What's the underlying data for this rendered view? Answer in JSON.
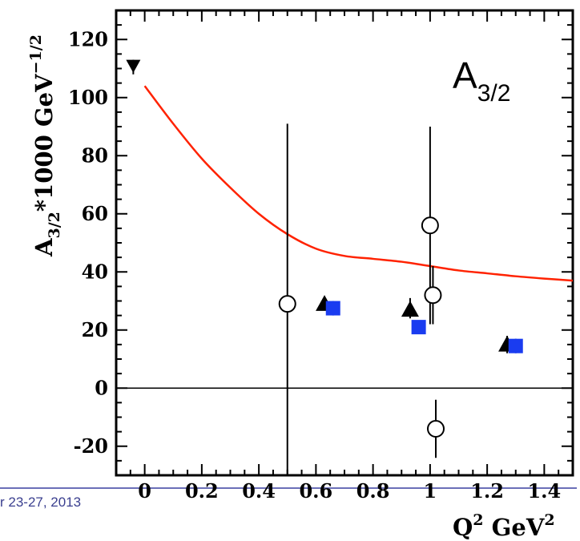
{
  "chart_data": {
    "type": "scatter",
    "title": "",
    "inset_label": {
      "main": "A",
      "sub": "3/2"
    },
    "ylabel": {
      "pre": "A",
      "sub": "3/2",
      "post": "*1000 GeV",
      "sup": "−1/2"
    },
    "xlabel": {
      "q": "Q",
      "sup1": "2",
      "gev": " GeV",
      "sup2": "2"
    },
    "xlim": [
      -0.1,
      1.5
    ],
    "ylim": [
      -30,
      130
    ],
    "x_ticks": [
      0,
      0.2,
      0.4,
      0.6,
      0.8,
      1,
      1.2,
      1.4
    ],
    "x_tick_labels": [
      "0",
      "0.2",
      "0.4",
      "0.6",
      "0.8",
      "1",
      "1.2",
      "1.4"
    ],
    "y_ticks": [
      -20,
      0,
      20,
      40,
      60,
      80,
      100,
      120
    ],
    "y_tick_labels": [
      "-20",
      "0",
      "20",
      "40",
      "60",
      "80",
      "100",
      "120"
    ],
    "reference_line_y": 0,
    "curve": {
      "color": "#ff2200",
      "x": [
        0.0,
        0.1,
        0.2,
        0.3,
        0.4,
        0.5,
        0.6,
        0.7,
        0.8,
        0.9,
        1.0,
        1.1,
        1.2,
        1.3,
        1.4,
        1.5
      ],
      "y": [
        104,
        91,
        79,
        69,
        60,
        53,
        48,
        45.5,
        44.5,
        43.5,
        42,
        40.5,
        39.5,
        38.5,
        37.7,
        37
      ]
    },
    "series": [
      {
        "marker": "circle-open",
        "color": "#000000",
        "points": [
          {
            "x": 0.5,
            "y": 29,
            "ylo": -35,
            "yhi": 91
          },
          {
            "x": 1.0,
            "y": 56,
            "ylo": 22,
            "yhi": 90
          },
          {
            "x": 1.01,
            "y": 32,
            "ylo": 22,
            "yhi": 42
          },
          {
            "x": 1.02,
            "y": -14,
            "ylo": -24,
            "yhi": -4
          }
        ]
      },
      {
        "marker": "triangle-up",
        "color": "#000000",
        "points": [
          {
            "x": 0.63,
            "y": 29,
            "ylo": 27,
            "yhi": 31
          },
          {
            "x": 0.93,
            "y": 27,
            "ylo": 24,
            "yhi": 31
          },
          {
            "x": 1.27,
            "y": 15,
            "ylo": 12,
            "yhi": 18
          }
        ]
      },
      {
        "marker": "square",
        "color": "#1a3cf0",
        "points": [
          {
            "x": 0.66,
            "y": 27.5,
            "ylo": 25,
            "yhi": 30
          },
          {
            "x": 0.96,
            "y": 21,
            "ylo": 19,
            "yhi": 23
          },
          {
            "x": 1.3,
            "y": 14.5,
            "ylo": 12,
            "yhi": 17
          }
        ]
      },
      {
        "marker": "triangle-down",
        "color": "#000000",
        "points": [
          {
            "x": -0.04,
            "y": 111,
            "ylo": 108,
            "yhi": 113
          }
        ]
      }
    ]
  },
  "footer": {
    "text": "r 23-27, 2013",
    "line_color": "#6b6fb8"
  }
}
